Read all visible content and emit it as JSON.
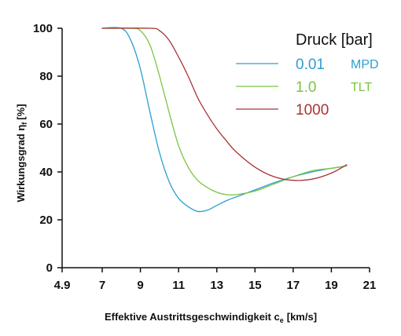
{
  "chart_data": {
    "type": "line",
    "title": "",
    "xlabel": "Effektive Austrittsgeschwindigkeit c",
    "xlabel_subscript": "e",
    "xlabel_unit": "[km/s]",
    "ylabel": "Wirkungsgrad η",
    "ylabel_subscript": "f",
    "ylabel_unit": "[%]",
    "xlim": [
      4.9,
      21
    ],
    "ylim": [
      0,
      100
    ],
    "xticks": [
      "4.9",
      "7",
      "9",
      "11",
      "13",
      "15",
      "17",
      "19",
      "21"
    ],
    "xtick_values": [
      4.9,
      7,
      9,
      11,
      13,
      15,
      17,
      19,
      21
    ],
    "yticks": [
      "0",
      "20",
      "40",
      "60",
      "80",
      "100"
    ],
    "ytick_values": [
      0,
      20,
      40,
      60,
      80,
      100
    ],
    "grid": false,
    "legend": {
      "title": "Druck [bar]",
      "placement": "top-right"
    },
    "series": [
      {
        "name": "0.01",
        "annotation": "MPD",
        "color": "#2e9fd0",
        "x": [
          7.0,
          8.0,
          8.5,
          9.0,
          9.5,
          10.0,
          10.5,
          11.0,
          11.5,
          12.0,
          12.5,
          13.0,
          13.5,
          14.0,
          15.0,
          16.0,
          17.0,
          18.0,
          19.0,
          19.8
        ],
        "y": [
          100,
          100,
          95,
          83,
          65,
          48,
          36,
          29,
          25.5,
          23.5,
          24,
          26,
          28,
          29.5,
          32.5,
          35.5,
          38,
          40,
          41.5,
          42.5
        ]
      },
      {
        "name": "1.0",
        "annotation": "TLT",
        "color": "#7bc443",
        "x": [
          7.0,
          8.5,
          9.0,
          9.5,
          10.0,
          10.5,
          11.0,
          11.5,
          12.0,
          12.5,
          13.0,
          13.5,
          14.0,
          15.0,
          16.0,
          17.0,
          18.0,
          19.0,
          19.8
        ],
        "y": [
          100,
          100,
          99,
          93,
          80,
          65,
          51,
          42,
          36.5,
          33.5,
          31.5,
          30.5,
          30.5,
          32,
          35,
          38,
          40.5,
          41.5,
          42.5
        ]
      },
      {
        "name": "1000",
        "annotation": "",
        "color": "#a83434",
        "x": [
          7.0,
          9.5,
          10.0,
          10.5,
          11.0,
          11.5,
          12.0,
          12.5,
          13.0,
          13.5,
          14.0,
          15.0,
          16.0,
          17.0,
          18.0,
          19.0,
          19.8
        ],
        "y": [
          100,
          100,
          99,
          95,
          88,
          80,
          71,
          64,
          58,
          53,
          48.5,
          42,
          38,
          36.5,
          37,
          39.5,
          43
        ]
      }
    ]
  }
}
